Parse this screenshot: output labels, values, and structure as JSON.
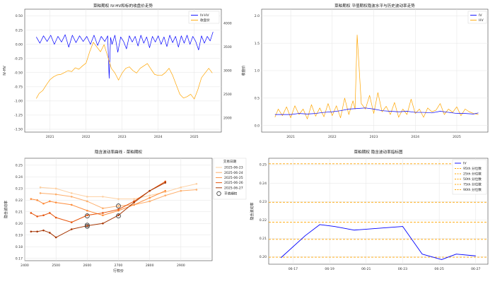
{
  "chart_data": [
    {
      "id": "p1",
      "type": "line",
      "title": "菜粕期权 IV-HV和标的收盘价走势",
      "ylabel_left": "IV-HV",
      "ylabel_right": "收盘价",
      "left_color": "#1f77b4",
      "right_color": "#d62728",
      "xlim": [
        2020.3,
        2025.75
      ],
      "ylim_left": [
        -1.55,
        0.62
      ],
      "ylim_right": [
        1700,
        4300
      ],
      "x_ticks": [
        2021,
        2022,
        2023,
        2024,
        2025
      ],
      "x_tick_labels": [
        "2021",
        "2022",
        "2023",
        "2024",
        "2025"
      ],
      "y_ticks_left": [
        0.5,
        0.25,
        0.0,
        -0.25,
        -0.5,
        -0.75,
        -1.0,
        -1.25,
        -1.5
      ],
      "y_tick_labels_left": [
        "0.50",
        "0.25",
        "0.00",
        "-0.25",
        "-0.50",
        "-0.75",
        "-1.00",
        "-1.25",
        "-1.50"
      ],
      "y_ticks_right": [
        4000,
        3500,
        3000,
        2500,
        2000
      ],
      "y_tick_labels_right": [
        "4000",
        "3500",
        "3000",
        "2500",
        "2000"
      ],
      "legend_position": "top-right",
      "series": [
        {
          "name": "IV-HV",
          "axis": "left",
          "color": "#0000ff",
          "x": [
            2020.62,
            2020.72,
            2020.82,
            2020.92,
            2021.02,
            2021.12,
            2021.22,
            2021.32,
            2021.42,
            2021.52,
            2021.62,
            2021.72,
            2021.82,
            2021.92,
            2022.02,
            2022.12,
            2022.22,
            2022.32,
            2022.42,
            2022.52,
            2022.6,
            2022.64,
            2022.68,
            2022.72,
            2022.8,
            2022.88,
            2022.96,
            2023.04,
            2023.12,
            2023.2,
            2023.28,
            2023.36,
            2023.44,
            2023.52,
            2023.6,
            2023.68,
            2023.76,
            2023.84,
            2023.92,
            2024.0,
            2024.08,
            2024.16,
            2024.24,
            2024.32,
            2024.4,
            2024.48,
            2024.56,
            2024.64,
            2024.72,
            2024.8,
            2024.88,
            2024.96,
            2025.04,
            2025.12,
            2025.2,
            2025.28,
            2025.36,
            2025.44,
            2025.52
          ],
          "values": [
            0.13,
            0.02,
            0.15,
            0.05,
            0.16,
            0.0,
            0.14,
            0.04,
            0.17,
            -0.05,
            0.16,
            0.03,
            0.15,
            0.05,
            0.14,
            0.0,
            0.16,
            -0.02,
            0.14,
            0.05,
            0.15,
            -0.6,
            0.12,
            0.0,
            0.16,
            -0.14,
            0.13,
            0.05,
            -0.08,
            0.15,
            0.04,
            0.14,
            -0.03,
            0.16,
            0.02,
            0.13,
            -0.06,
            0.14,
            0.04,
            0.15,
            0.0,
            0.13,
            -0.04,
            0.16,
            0.03,
            0.14,
            -0.05,
            0.15,
            0.02,
            0.16,
            0.0,
            0.14,
            0.05,
            -0.1,
            0.15,
            0.02,
            0.14,
            0.06,
            0.22
          ]
        },
        {
          "name": "收盘价",
          "axis": "right",
          "color": "#ffa500",
          "x": [
            2020.62,
            2020.7,
            2020.8,
            2020.9,
            2021.0,
            2021.1,
            2021.2,
            2021.3,
            2021.4,
            2021.5,
            2021.6,
            2021.7,
            2021.8,
            2021.9,
            2022.0,
            2022.1,
            2022.2,
            2022.3,
            2022.4,
            2022.5,
            2022.6,
            2022.7,
            2022.8,
            2022.9,
            2023.0,
            2023.1,
            2023.2,
            2023.3,
            2023.4,
            2023.5,
            2023.6,
            2023.7,
            2023.8,
            2023.9,
            2024.0,
            2024.1,
            2024.2,
            2024.3,
            2024.4,
            2024.5,
            2024.6,
            2024.7,
            2024.8,
            2024.9,
            2025.0,
            2025.1,
            2025.2,
            2025.3,
            2025.4,
            2025.5
          ],
          "values": [
            2410,
            2520,
            2580,
            2700,
            2810,
            2870,
            2910,
            2920,
            2960,
            3000,
            2980,
            3060,
            3030,
            3100,
            3160,
            3400,
            3600,
            3500,
            3400,
            3550,
            3300,
            3050,
            2950,
            2800,
            2950,
            3050,
            3080,
            3000,
            2950,
            3050,
            3100,
            3150,
            3030,
            2920,
            2900,
            2900,
            2960,
            3050,
            2900,
            2700,
            2500,
            2420,
            2450,
            2500,
            2400,
            2600,
            2850,
            2950,
            3050,
            2950
          ]
        }
      ]
    },
    {
      "id": "p2",
      "type": "line",
      "title": "菜粕期权 平值期权隐波水平与历史波动率走势",
      "xlim": [
        2020.3,
        2025.75
      ],
      "ylim": [
        -0.12,
        2.12
      ],
      "x_ticks": [
        2021,
        2022,
        2023,
        2024,
        2025
      ],
      "x_tick_labels": [
        "2021",
        "2022",
        "2023",
        "2024",
        "2025"
      ],
      "y_ticks": [
        2.0,
        1.5,
        1.0,
        0.5,
        0.0
      ],
      "y_tick_labels": [
        "2.0",
        "1.5",
        "1.0",
        "0.5",
        "0.0"
      ],
      "legend_position": "top-right",
      "series": [
        {
          "name": "IV",
          "color": "#0000ff",
          "x": [
            2020.62,
            2020.8,
            2021.0,
            2021.2,
            2021.4,
            2021.6,
            2021.8,
            2022.0,
            2022.2,
            2022.4,
            2022.6,
            2022.8,
            2023.0,
            2023.2,
            2023.4,
            2023.6,
            2023.8,
            2024.0,
            2024.2,
            2024.4,
            2024.6,
            2024.8,
            2025.0,
            2025.2,
            2025.4,
            2025.52
          ],
          "values": [
            0.2,
            0.2,
            0.2,
            0.22,
            0.21,
            0.22,
            0.24,
            0.25,
            0.27,
            0.3,
            0.31,
            0.32,
            0.3,
            0.27,
            0.26,
            0.25,
            0.26,
            0.24,
            0.24,
            0.23,
            0.26,
            0.24,
            0.22,
            0.22,
            0.21,
            0.23
          ]
        },
        {
          "name": "HV",
          "color": "#ffa500",
          "x": [
            2020.62,
            2020.7,
            2020.8,
            2020.9,
            2021.0,
            2021.1,
            2021.2,
            2021.3,
            2021.4,
            2021.5,
            2021.6,
            2021.7,
            2021.8,
            2021.9,
            2022.0,
            2022.1,
            2022.2,
            2022.3,
            2022.4,
            2022.5,
            2022.55,
            2022.6,
            2022.7,
            2022.8,
            2022.9,
            2023.0,
            2023.1,
            2023.2,
            2023.3,
            2023.4,
            2023.5,
            2023.6,
            2023.7,
            2023.8,
            2023.9,
            2024.0,
            2024.1,
            2024.2,
            2024.3,
            2024.4,
            2024.5,
            2024.6,
            2024.7,
            2024.8,
            2024.9,
            2025.0,
            2025.1,
            2025.2,
            2025.3,
            2025.4,
            2025.52
          ],
          "values": [
            0.15,
            0.3,
            0.18,
            0.34,
            0.14,
            0.36,
            0.2,
            0.3,
            0.12,
            0.38,
            0.17,
            0.32,
            0.16,
            0.4,
            0.18,
            0.36,
            0.14,
            0.5,
            0.2,
            0.45,
            0.3,
            1.65,
            0.4,
            0.3,
            0.55,
            0.22,
            0.6,
            0.25,
            0.35,
            0.2,
            0.42,
            0.15,
            0.3,
            0.2,
            0.48,
            0.22,
            0.3,
            0.15,
            0.32,
            0.25,
            0.28,
            0.4,
            0.2,
            0.3,
            0.24,
            0.34,
            0.18,
            0.3,
            0.25,
            0.22,
            0.2
          ]
        }
      ]
    },
    {
      "id": "p3",
      "type": "line",
      "title": "隐含波动率曲线 - 菜粕期权",
      "xlabel": "行权价",
      "ylabel": "隐含波动率",
      "xlim": [
        2400,
        3000
      ],
      "ylim": [
        0.168,
        0.256
      ],
      "x_ticks": [
        2400,
        2500,
        2600,
        2700,
        2800,
        2900
      ],
      "x_tick_labels": [
        "2400",
        "2500",
        "2600",
        "2700",
        "2800",
        "2900"
      ],
      "y_ticks": [
        0.25,
        0.24,
        0.23,
        0.22,
        0.21,
        0.2,
        0.19,
        0.18,
        0.17
      ],
      "y_tick_labels": [
        "0.25",
        "0.24",
        "0.23",
        "0.22",
        "0.21",
        "0.20",
        "0.19",
        "0.18",
        "0.17"
      ],
      "legend_title": "交易日期",
      "legend_position": "right-outside",
      "atm_label": "平值期权",
      "series": [
        {
          "name": "2025-06-23",
          "color": "#fdd0a2",
          "x": [
            2450,
            2500,
            2550,
            2600,
            2650,
            2700,
            2750,
            2800,
            2850,
            2900,
            2950
          ],
          "values": [
            0.231,
            0.23,
            0.226,
            0.223,
            0.223,
            0.221,
            0.221,
            0.224,
            0.227,
            0.231,
            0.234
          ]
        },
        {
          "name": "2025-06-24",
          "color": "#fdae6b",
          "x": [
            2450,
            2500,
            2550,
            2600,
            2650,
            2700,
            2750,
            2800,
            2850,
            2900,
            2950
          ],
          "values": [
            0.226,
            0.225,
            0.223,
            0.219,
            0.213,
            0.215,
            0.216,
            0.219,
            0.224,
            0.228,
            0.229
          ]
        },
        {
          "name": "2025-06-25",
          "color": "#fd8d3c",
          "x": [
            2420,
            2440,
            2460,
            2480,
            2500,
            2550,
            2600,
            2650,
            2700,
            2750,
            2800,
            2850
          ],
          "values": [
            0.221,
            0.22,
            0.217,
            0.219,
            0.218,
            0.216,
            0.211,
            0.207,
            0.211,
            0.216,
            0.222,
            0.228
          ]
        },
        {
          "name": "2025-06-26",
          "color": "#e6550d",
          "x": [
            2420,
            2440,
            2460,
            2480,
            2500,
            2550,
            2600,
            2650,
            2700,
            2750,
            2800,
            2850
          ],
          "values": [
            0.209,
            0.206,
            0.207,
            0.209,
            0.205,
            0.201,
            0.207,
            0.209,
            0.212,
            0.219,
            0.228,
            0.236
          ]
        },
        {
          "name": "2025-06-27",
          "color": "#a63603",
          "x": [
            2420,
            2440,
            2460,
            2480,
            2500,
            2550,
            2600,
            2650,
            2700,
            2750,
            2800,
            2850
          ],
          "values": [
            0.193,
            0.193,
            0.194,
            0.192,
            0.188,
            0.195,
            0.198,
            0.2,
            0.207,
            0.218,
            0.228,
            0.235
          ]
        }
      ],
      "atm_points": [
        {
          "x": 2700,
          "y": 0.215
        },
        {
          "x": 2600,
          "y": 0.2065
        },
        {
          "x": 2700,
          "y": 0.2065
        },
        {
          "x": 2600,
          "y": 0.1975
        },
        {
          "x": 2600,
          "y": 0.1985
        }
      ]
    },
    {
      "id": "p4",
      "type": "line",
      "title": "菜粕期权 隐含波动率指标图",
      "ylabel": "隐含波动率",
      "xlim": [
        -0.5,
        8.5
      ],
      "ylim": [
        0.196,
        0.2535
      ],
      "x_ticks": [
        0.5,
        2,
        3.5,
        5,
        6.5,
        8
      ],
      "x_tick_labels": [
        "06-17",
        "06-19",
        "06-21",
        "06-23",
        "06-25",
        "06-27"
      ],
      "y_ticks": [
        0.25,
        0.24,
        0.23,
        0.22,
        0.21,
        0.2
      ],
      "y_tick_labels": [
        "0.25",
        "0.24",
        "0.23",
        "0.22",
        "0.21",
        "0.20"
      ],
      "legend_position": "top-right",
      "series": [
        {
          "name": "IV",
          "color": "#0000ff",
          "x": [
            0,
            1,
            1.6,
            2.2,
            3,
            5,
            5.8,
            6.6,
            7.2,
            8
          ],
          "values": [
            0.1995,
            0.2115,
            0.2175,
            0.2165,
            0.2145,
            0.2165,
            0.2015,
            0.1985,
            0.2015,
            0.2005
          ]
        }
      ],
      "percentile_lines": [
        {
          "name": "95th 分位数",
          "value": 0.2505
        },
        {
          "name": "25th 分位数",
          "value": 0.2296
        },
        {
          "name": "50th 分位数",
          "value": 0.2188
        },
        {
          "name": "75th 分位数",
          "value": 0.2095
        },
        {
          "name": "90th 分位数",
          "value": 0.1998
        }
      ],
      "percentile_color": "#ffa500"
    }
  ]
}
